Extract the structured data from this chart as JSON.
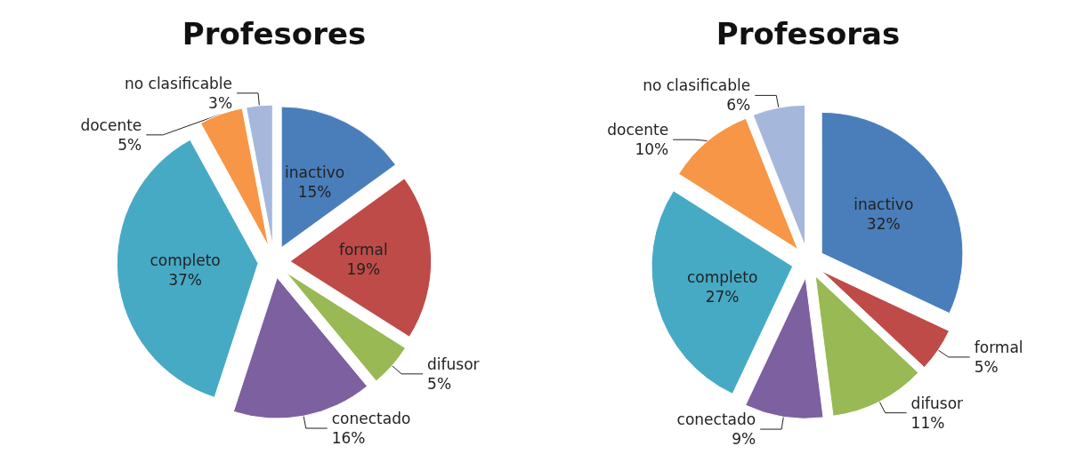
{
  "chart_data": [
    {
      "type": "pie",
      "title": "Profesores",
      "categories": [
        "inactivo",
        "formal",
        "difusor",
        "conectado",
        "completo",
        "docente",
        "no clasificable"
      ],
      "values": [
        15,
        19,
        5,
        16,
        37,
        5,
        3
      ],
      "value_labels": [
        "15%",
        "19%",
        "5%",
        "16%",
        "37%",
        "5%",
        "3%"
      ],
      "colors": [
        "#4a7ebb",
        "#be4b48",
        "#98b954",
        "#7d60a0",
        "#46aac5",
        "#f79646",
        "#a5b8dc"
      ]
    },
    {
      "type": "pie",
      "title": "Profesoras",
      "categories": [
        "inactivo",
        "formal",
        "difusor",
        "conectado",
        "completo",
        "docente",
        "no clasificable"
      ],
      "values": [
        32,
        5,
        11,
        9,
        27,
        10,
        6
      ],
      "value_labels": [
        "32%",
        "5%",
        "11%",
        "9%",
        "27%",
        "10%",
        "6%"
      ],
      "colors": [
        "#4a7ebb",
        "#be4b48",
        "#98b954",
        "#7d60a0",
        "#46aac5",
        "#f79646",
        "#a5b8dc"
      ]
    }
  ]
}
